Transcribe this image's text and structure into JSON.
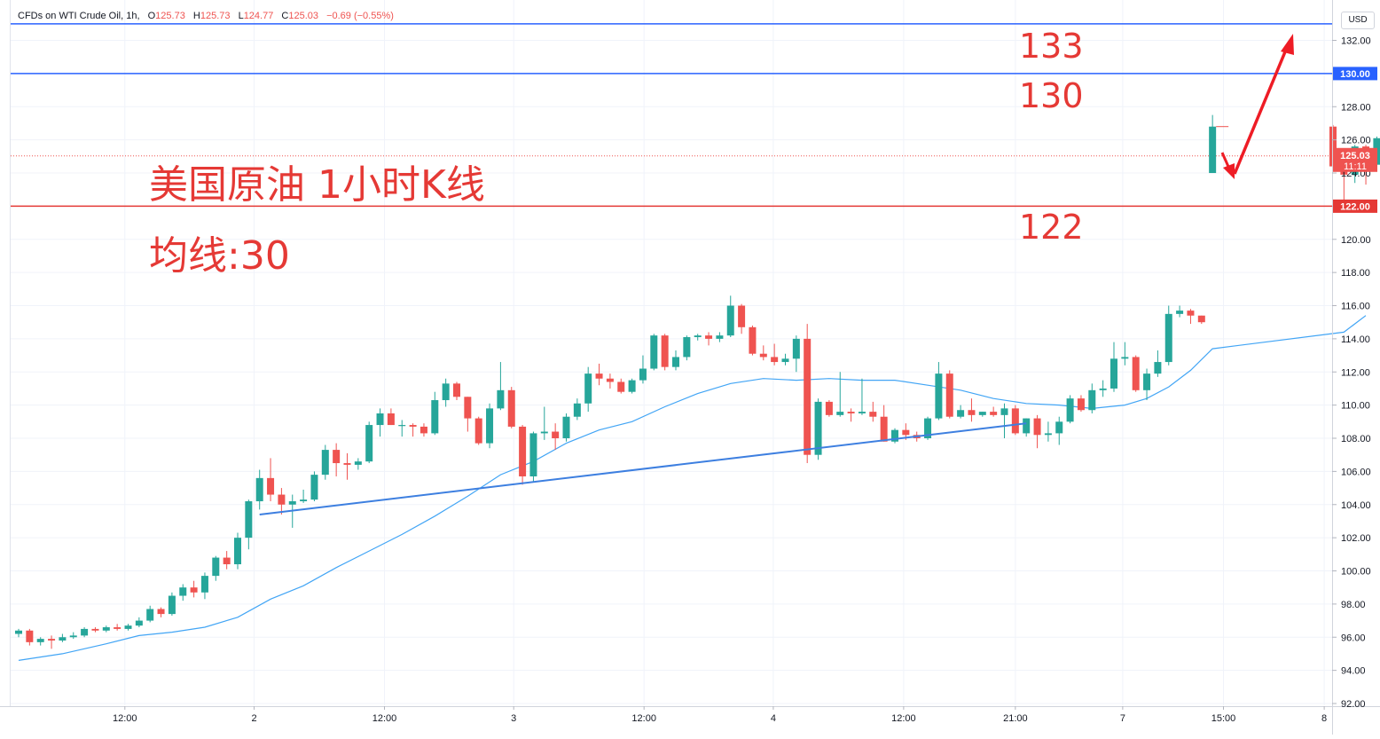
{
  "legend": {
    "symbol": "CFDs on WTI Crude Oil, 1h,",
    "o_label": "O",
    "o": "125.73",
    "h_label": "H",
    "h": "125.73",
    "l_label": "L",
    "l": "124.77",
    "c_label": "C",
    "c": "125.03",
    "change": "−0.69 (−0.55%)"
  },
  "currency": "USD",
  "annotations": {
    "title": "美国原油 1小时K线",
    "ma_label": "均线:30",
    "level_133": "133",
    "level_130": "130",
    "level_122": "122"
  },
  "colors": {
    "up": "#26a69a",
    "down": "#ef5350",
    "ma": "#42a5f5",
    "trendline": "#3d7fe0",
    "resistance": "#2962ff",
    "support": "#e53935",
    "arrow": "#ee1c25"
  },
  "chart_data": {
    "type": "candlestick",
    "title": "",
    "y_axis": {
      "range": [
        92,
        133.5
      ],
      "ticks": [
        92,
        94,
        96,
        98,
        100,
        102,
        104,
        106,
        108,
        110,
        112,
        114,
        116,
        118,
        120,
        122,
        124,
        126,
        128,
        130,
        132
      ],
      "tick_labels": [
        "92.00",
        "94.00",
        "96.00",
        "98.00",
        "100.00",
        "102.00",
        "104.00",
        "106.00",
        "108.00",
        "110.00",
        "112.00",
        "114.00",
        "116.00",
        "118.00",
        "120.00",
        "122.00",
        "124.00",
        "126.00",
        "128.00",
        "130.00",
        "132.00"
      ]
    },
    "x_axis": {
      "tick_labels": [
        "12:00",
        "2",
        "12:00",
        "3",
        "12:00",
        "4",
        "12:00",
        "21:00",
        "7",
        "15:00",
        "8"
      ],
      "tick_index": [
        9.7,
        21.5,
        33.4,
        45.2,
        57.1,
        68.9,
        80.8,
        91,
        100.8,
        110,
        119.2
      ]
    },
    "horizontal_lines": [
      {
        "name": "top",
        "value": 133.0,
        "color": "#2962ff"
      },
      {
        "name": "resistance",
        "value": 130.0,
        "color": "#2962ff",
        "label": "130.00"
      },
      {
        "name": "support",
        "value": 122.0,
        "color": "#e53935",
        "label": "122.00"
      }
    ],
    "last_price": {
      "value": 125.03,
      "label": "125.03",
      "countdown": "11:11"
    },
    "ohlc": [
      [
        96.2,
        96.5,
        96.0,
        96.4
      ],
      [
        96.4,
        96.5,
        95.5,
        95.7
      ],
      [
        95.7,
        96.0,
        95.5,
        95.9
      ],
      [
        95.9,
        96.1,
        95.3,
        95.8
      ],
      [
        95.8,
        96.2,
        95.7,
        96.0
      ],
      [
        96.0,
        96.3,
        95.9,
        96.1
      ],
      [
        96.1,
        96.6,
        96.0,
        96.5
      ],
      [
        96.5,
        96.6,
        96.3,
        96.4
      ],
      [
        96.4,
        96.7,
        96.3,
        96.6
      ],
      [
        96.6,
        96.8,
        96.4,
        96.5
      ],
      [
        96.5,
        96.8,
        96.4,
        96.7
      ],
      [
        96.7,
        97.2,
        96.6,
        97.0
      ],
      [
        97.0,
        97.9,
        96.9,
        97.7
      ],
      [
        97.7,
        97.8,
        97.2,
        97.4
      ],
      [
        97.4,
        98.7,
        97.3,
        98.5
      ],
      [
        98.5,
        99.2,
        98.2,
        99.0
      ],
      [
        99.0,
        99.4,
        98.4,
        98.7
      ],
      [
        98.7,
        99.9,
        98.3,
        99.7
      ],
      [
        99.7,
        100.9,
        99.4,
        100.8
      ],
      [
        100.8,
        101.2,
        100.1,
        100.4
      ],
      [
        100.4,
        102.3,
        100.1,
        102.0
      ],
      [
        102.0,
        104.3,
        101.3,
        104.2
      ],
      [
        104.2,
        106.1,
        103.7,
        105.6
      ],
      [
        105.6,
        106.8,
        104.2,
        104.6
      ],
      [
        104.6,
        105.0,
        103.4,
        104.0
      ],
      [
        104.0,
        104.6,
        102.6,
        104.2
      ],
      [
        104.2,
        104.9,
        104.1,
        104.3
      ],
      [
        104.3,
        106.0,
        104.2,
        105.8
      ],
      [
        105.8,
        107.6,
        105.5,
        107.3
      ],
      [
        107.3,
        107.7,
        105.7,
        106.5
      ],
      [
        106.5,
        107.1,
        105.5,
        106.4
      ],
      [
        106.4,
        106.8,
        106.1,
        106.6
      ],
      [
        106.6,
        109.0,
        106.5,
        108.8
      ],
      [
        108.8,
        109.8,
        108.1,
        109.5
      ],
      [
        109.5,
        109.8,
        108.8,
        108.8
      ],
      [
        108.8,
        109.1,
        108.1,
        108.8
      ],
      [
        108.8,
        108.9,
        108.1,
        108.7
      ],
      [
        108.7,
        108.9,
        108.1,
        108.3
      ],
      [
        108.3,
        110.8,
        108.2,
        110.3
      ],
      [
        110.3,
        111.6,
        109.9,
        111.3
      ],
      [
        111.3,
        111.4,
        110.3,
        110.5
      ],
      [
        110.5,
        110.5,
        108.4,
        109.2
      ],
      [
        109.2,
        109.3,
        107.6,
        107.7
      ],
      [
        107.7,
        110.1,
        107.4,
        109.8
      ],
      [
        109.8,
        112.6,
        109.7,
        110.9
      ],
      [
        110.9,
        111.1,
        108.6,
        108.7
      ],
      [
        108.7,
        108.8,
        105.2,
        105.7
      ],
      [
        105.7,
        108.4,
        105.4,
        108.3
      ],
      [
        108.3,
        109.9,
        107.9,
        108.4
      ],
      [
        108.4,
        108.9,
        107.3,
        108.0
      ],
      [
        108.0,
        109.5,
        107.8,
        109.3
      ],
      [
        109.3,
        110.4,
        109.1,
        110.1
      ],
      [
        110.1,
        112.3,
        109.6,
        111.9
      ],
      [
        111.9,
        112.5,
        111.2,
        111.6
      ],
      [
        111.6,
        111.9,
        111.0,
        111.4
      ],
      [
        111.4,
        111.6,
        110.7,
        110.8
      ],
      [
        110.8,
        111.6,
        110.7,
        111.5
      ],
      [
        111.5,
        113.0,
        111.3,
        112.2
      ],
      [
        112.2,
        114.3,
        112.1,
        114.2
      ],
      [
        114.2,
        114.3,
        112.1,
        112.3
      ],
      [
        112.3,
        113.3,
        112.1,
        112.9
      ],
      [
        112.9,
        114.2,
        112.7,
        114.1
      ],
      [
        114.1,
        114.3,
        113.9,
        114.2
      ],
      [
        114.2,
        114.4,
        113.6,
        114.0
      ],
      [
        114.0,
        114.4,
        113.8,
        114.2
      ],
      [
        114.2,
        116.6,
        114.1,
        116.0
      ],
      [
        116.0,
        116.1,
        114.3,
        114.7
      ],
      [
        114.7,
        114.8,
        113.0,
        113.1
      ],
      [
        113.1,
        113.6,
        112.7,
        112.9
      ],
      [
        112.9,
        113.7,
        112.4,
        112.6
      ],
      [
        112.6,
        113.1,
        112.4,
        112.8
      ],
      [
        112.8,
        114.2,
        112.0,
        114.0
      ],
      [
        114.0,
        114.9,
        106.5,
        107.0
      ],
      [
        107.0,
        110.4,
        106.7,
        110.2
      ],
      [
        110.2,
        110.3,
        109.3,
        109.4
      ],
      [
        109.4,
        112.0,
        109.3,
        109.6
      ],
      [
        109.6,
        109.8,
        109.0,
        109.5
      ],
      [
        109.5,
        111.6,
        109.4,
        109.6
      ],
      [
        109.6,
        110.2,
        109.0,
        109.3
      ],
      [
        109.3,
        110.0,
        107.8,
        107.8
      ],
      [
        107.8,
        108.6,
        107.7,
        108.5
      ],
      [
        108.5,
        108.9,
        107.9,
        108.2
      ],
      [
        108.2,
        108.4,
        107.8,
        108.0
      ],
      [
        108.0,
        109.3,
        107.9,
        109.2
      ],
      [
        109.2,
        112.6,
        109.1,
        111.9
      ],
      [
        111.9,
        112.1,
        109.2,
        109.3
      ],
      [
        109.3,
        110.0,
        109.2,
        109.7
      ],
      [
        109.7,
        110.4,
        109.0,
        109.4
      ],
      [
        109.4,
        109.6,
        109.3,
        109.6
      ],
      [
        109.6,
        109.9,
        109.3,
        109.4
      ],
      [
        109.4,
        110.1,
        108.0,
        109.8
      ],
      [
        109.8,
        110.0,
        108.2,
        108.3
      ],
      [
        108.3,
        109.2,
        108.1,
        109.2
      ],
      [
        109.2,
        109.4,
        107.4,
        108.2
      ],
      [
        108.2,
        109.0,
        107.8,
        108.3
      ],
      [
        108.3,
        109.3,
        107.6,
        109.0
      ],
      [
        109.0,
        110.6,
        108.9,
        110.4
      ],
      [
        110.4,
        110.6,
        109.6,
        109.7
      ],
      [
        109.7,
        111.3,
        109.5,
        110.9
      ],
      [
        110.9,
        111.5,
        110.5,
        111.0
      ],
      [
        111.0,
        113.8,
        110.8,
        112.8
      ],
      [
        112.8,
        113.8,
        112.4,
        112.9
      ],
      [
        112.9,
        113.0,
        110.8,
        110.9
      ],
      [
        110.9,
        112.2,
        110.3,
        111.9
      ],
      [
        111.9,
        113.3,
        111.7,
        112.6
      ],
      [
        112.6,
        116.0,
        112.4,
        115.5
      ],
      [
        115.5,
        116.0,
        115.3,
        115.7
      ],
      [
        115.7,
        115.8,
        114.9,
        115.4
      ],
      [
        115.4,
        115.4,
        114.9,
        115.0
      ],
      [
        124.0,
        127.5,
        124.0,
        126.8
      ],
      [
        126.8,
        126.9,
        124.2,
        124.4
      ],
      [
        124.4,
        125.0,
        122.0,
        123.9
      ],
      [
        123.9,
        125.7,
        123.4,
        125.6
      ],
      [
        125.6,
        125.7,
        123.3,
        124.5
      ],
      [
        124.5,
        126.2,
        124.4,
        126.1
      ],
      [
        126.1,
        126.6,
        125.4,
        126.0
      ],
      [
        126.0,
        126.4,
        125.6,
        125.8
      ],
      [
        125.73,
        125.73,
        124.77,
        125.03
      ]
    ],
    "ma_30": [
      [
        0,
        94.6
      ],
      [
        4,
        95.0
      ],
      [
        8,
        95.6
      ],
      [
        11,
        96.1
      ],
      [
        14,
        96.3
      ],
      [
        17,
        96.6
      ],
      [
        20,
        97.2
      ],
      [
        23,
        98.3
      ],
      [
        26,
        99.1
      ],
      [
        29,
        100.2
      ],
      [
        32,
        101.2
      ],
      [
        35,
        102.2
      ],
      [
        38,
        103.3
      ],
      [
        41,
        104.5
      ],
      [
        44,
        105.8
      ],
      [
        47,
        106.6
      ],
      [
        50,
        107.7
      ],
      [
        53,
        108.5
      ],
      [
        56,
        109.0
      ],
      [
        59,
        109.9
      ],
      [
        62,
        110.7
      ],
      [
        65,
        111.3
      ],
      [
        68,
        111.6
      ],
      [
        71,
        111.5
      ],
      [
        74,
        111.6
      ],
      [
        77,
        111.5
      ],
      [
        80,
        111.5
      ],
      [
        83,
        111.2
      ],
      [
        86,
        110.9
      ],
      [
        89,
        110.4
      ],
      [
        92,
        110.1
      ],
      [
        95,
        110.0
      ],
      [
        98,
        109.8
      ],
      [
        101,
        110.0
      ],
      [
        103,
        110.4
      ],
      [
        105,
        111.1
      ],
      [
        107,
        112.1
      ],
      [
        109,
        113.4
      ],
      [
        111,
        114.4
      ],
      [
        113,
        115.4
      ]
    ],
    "trendline": [
      [
        22,
        103.4
      ],
      [
        92,
        108.9
      ]
    ]
  }
}
